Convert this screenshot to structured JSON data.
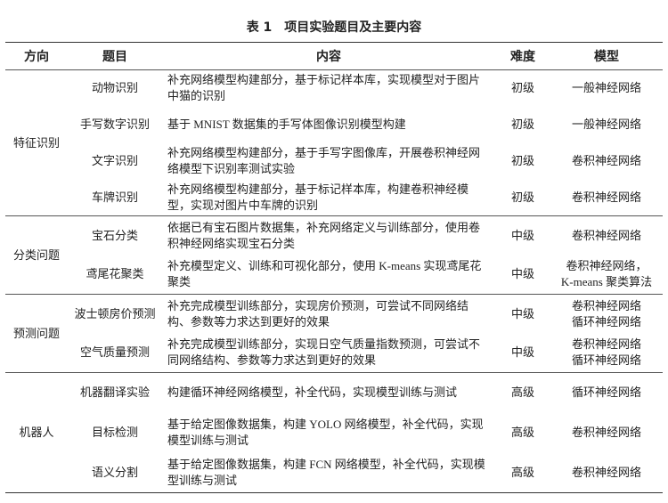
{
  "title": "表 1　项目实验题目及主要内容",
  "table": {
    "headers": [
      "方向",
      "题目",
      "内容",
      "难度",
      "模型"
    ],
    "groups": [
      {
        "direction": "特征识别",
        "rows": [
          {
            "topic": "动物识别",
            "content": "补充网络模型构建部分，基于标记样本库，实现模型对于图片中猫的识别",
            "level": "初级",
            "model": [
              "一般神经网络"
            ]
          },
          {
            "topic": "手写数字识别",
            "content": "基于 MNIST 数据集的手写体图像识别模型构建",
            "level": "初级",
            "model": [
              "一般神经网络"
            ]
          },
          {
            "topic": "文字识别",
            "content": "补充网络模型构建部分，基于手写字图像库，开展卷积神经网络模型下识别率测试实验",
            "level": "初级",
            "model": [
              "卷积神经网络"
            ]
          },
          {
            "topic": "车牌识别",
            "content": "补充网络模型构建部分，基于标记样本库，构建卷积神经模型，实现对图片中车牌的识别",
            "level": "初级",
            "model": [
              "卷积神经网络"
            ]
          }
        ]
      },
      {
        "direction": "分类问题",
        "rows": [
          {
            "topic": "宝石分类",
            "content": "依据已有宝石图片数据集，补充网络定义与训练部分，使用卷积神经网络实现宝石分类",
            "level": "中级",
            "model": [
              "卷积神经网络"
            ]
          },
          {
            "topic": "鸢尾花聚类",
            "content": "补充模型定义、训练和可视化部分，使用 K-means 实现鸢尾花聚类",
            "level": "中级",
            "model": [
              "卷积神经网络，",
              "K-means 聚类算法"
            ]
          }
        ]
      },
      {
        "direction": "预测问题",
        "rows": [
          {
            "topic": "波士顿房价预测",
            "content": "补充完成模型训练部分，实现房价预测，可尝试不同网络结构、参数等力求达到更好的效果",
            "level": "中级",
            "model": [
              "卷积神经网络",
              "循环神经网络"
            ]
          },
          {
            "topic": "空气质量预测",
            "content": "补充完成模型训练部分，实现日空气质量指数预测，可尝试不同网络结构、参数等力求达到更好的效果",
            "level": "中级",
            "model": [
              "卷积神经网络",
              "循环神经网络"
            ]
          }
        ]
      },
      {
        "direction": "机器人",
        "rows": [
          {
            "topic": "机器翻译实验",
            "content": "构建循环神经网络模型，补全代码，实现模型训练与测试",
            "level": "高级",
            "model": [
              "循环神经网络"
            ]
          },
          {
            "topic": "目标检测",
            "content": "基于给定图像数据集，构建 YOLO 网络模型，补全代码，实现模型训练与测试",
            "level": "高级",
            "model": [
              "卷积神经网络"
            ]
          },
          {
            "topic": "语义分割",
            "content": "基于给定图像数据集，构建 FCN 网络模型，补全代码，实现模型训练与测试",
            "level": "高级",
            "model": [
              "卷积神经网络"
            ]
          }
        ]
      }
    ]
  }
}
